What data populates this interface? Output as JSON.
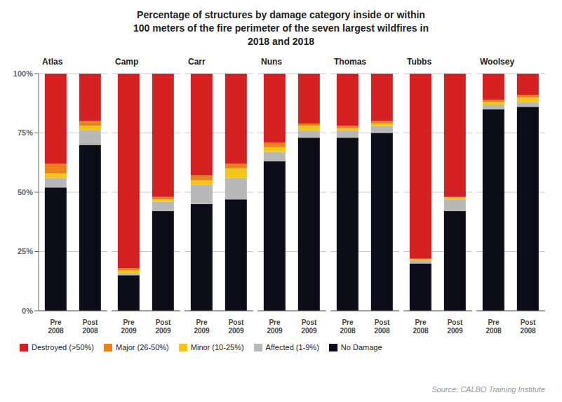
{
  "title": "Percentage of structures by damage category inside or within\n100 meters of the fire perimeter of the seven largest wildfires in\n2018 and 2018",
  "annotations": [
    "Source: CALBO Training Institute"
  ],
  "legend": "lower left",
  "chart_data": [
    {
      "type": "bar",
      "stacked": true,
      "title": "Atlas",
      "categories": [
        "Pre\n2008",
        "Post\n2008"
      ],
      "series": [
        {
          "name": "No Damage",
          "color": "#0d0d1a",
          "values": [
            52,
            70
          ]
        },
        {
          "name": "Affected (1-9%)",
          "color": "#b8b8b8",
          "values": [
            4,
            6
          ]
        },
        {
          "name": "Minor (10-25%)",
          "color": "#f5c518",
          "values": [
            2,
            2
          ]
        },
        {
          "name": "Major (26-50%)",
          "color": "#e8821a",
          "values": [
            4,
            2
          ]
        },
        {
          "name": "Destroyed (>50%)",
          "color": "#d42020",
          "values": [
            38,
            20
          ]
        }
      ],
      "ylim": [
        0,
        100
      ],
      "yticks": [
        {
          "value": 0,
          "label": "0%"
        },
        {
          "value": 25,
          "label": "25%"
        },
        {
          "value": 50,
          "label": "50%"
        },
        {
          "value": 75,
          "label": "75%"
        },
        {
          "value": 100,
          "label": "100%"
        }
      ],
      "grid": true
    },
    {
      "type": "bar",
      "stacked": true,
      "title": "Camp",
      "categories": [
        "Pre\n2009",
        "Post\n2009"
      ],
      "series": [
        {
          "name": "No Damage",
          "color": "#0d0d1a",
          "values": [
            15,
            42
          ]
        },
        {
          "name": "Affected (1-9%)",
          "color": "#b8b8b8",
          "values": [
            1,
            4
          ]
        },
        {
          "name": "Minor (10-25%)",
          "color": "#f5c518",
          "values": [
            1,
            1
          ]
        },
        {
          "name": "Major (26-50%)",
          "color": "#e8821a",
          "values": [
            1,
            1
          ]
        },
        {
          "name": "Destroyed (>50%)",
          "color": "#d42020",
          "values": [
            82,
            52
          ]
        }
      ],
      "ylim": [
        0,
        100
      ],
      "yticks": [
        0,
        25,
        50,
        75,
        100
      ],
      "tick_labels": "x",
      "grid": true
    },
    {
      "type": "bar",
      "stacked": true,
      "title": "Carr",
      "categories": [
        "Pre\n2009",
        "Post\n2009"
      ],
      "series": [
        {
          "name": "No Damage",
          "color": "#0d0d1a",
          "values": [
            45,
            47
          ]
        },
        {
          "name": "Affected (1-9%)",
          "color": "#b8b8b8",
          "values": [
            8,
            9
          ]
        },
        {
          "name": "Minor (10-25%)",
          "color": "#f5c518",
          "values": [
            2,
            4
          ]
        },
        {
          "name": "Major (26-50%)",
          "color": "#e8821a",
          "values": [
            2,
            2
          ]
        },
        {
          "name": "Destroyed (>50%)",
          "color": "#d42020",
          "values": [
            43,
            38
          ]
        }
      ],
      "ylim": [
        0,
        100
      ],
      "yticks": [
        0,
        25,
        50,
        75,
        100
      ],
      "tick_labels": "x",
      "grid": true
    },
    {
      "type": "bar",
      "stacked": true,
      "title": "Nuns",
      "categories": [
        "Pre\n2009",
        "Post\n2009"
      ],
      "series": [
        {
          "name": "No Damage",
          "color": "#0d0d1a",
          "values": [
            63,
            73
          ]
        },
        {
          "name": "Affected (1-9%)",
          "color": "#b8b8b8",
          "values": [
            4,
            3
          ]
        },
        {
          "name": "Minor (10-25%)",
          "color": "#f5c518",
          "values": [
            2,
            2
          ]
        },
        {
          "name": "Major (26-50%)",
          "color": "#e8821a",
          "values": [
            2,
            1
          ]
        },
        {
          "name": "Destroyed (>50%)",
          "color": "#d42020",
          "values": [
            29,
            21
          ]
        }
      ],
      "ylim": [
        0,
        100
      ],
      "yticks": [
        0,
        25,
        50,
        75,
        100
      ],
      "tick_labels": "x",
      "grid": true
    },
    {
      "type": "bar",
      "stacked": true,
      "title": "Thomas",
      "categories": [
        "Pre\n2008",
        "Post\n2008"
      ],
      "series": [
        {
          "name": "No Damage",
          "color": "#0d0d1a",
          "values": [
            73,
            75
          ]
        },
        {
          "name": "Affected (1-9%)",
          "color": "#b8b8b8",
          "values": [
            3,
            3
          ]
        },
        {
          "name": "Minor (10-25%)",
          "color": "#f5c518",
          "values": [
            1,
            1
          ]
        },
        {
          "name": "Major (26-50%)",
          "color": "#e8821a",
          "values": [
            1,
            1
          ]
        },
        {
          "name": "Destroyed (>50%)",
          "color": "#d42020",
          "values": [
            22,
            20
          ]
        }
      ],
      "ylim": [
        0,
        100
      ],
      "yticks": [
        0,
        25,
        50,
        75,
        100
      ],
      "tick_labels": "x",
      "grid": true
    },
    {
      "type": "bar",
      "stacked": true,
      "title": "Tubbs",
      "categories": [
        "Pre\n2008",
        "Post\n2009"
      ],
      "series": [
        {
          "name": "No Damage",
          "color": "#0d0d1a",
          "values": [
            20,
            42
          ]
        },
        {
          "name": "Affected (1-9%)",
          "color": "#b8b8b8",
          "values": [
            1,
            5
          ]
        },
        {
          "name": "Minor (10-25%)",
          "color": "#f5c518",
          "values": [
            1,
            1
          ]
        },
        {
          "name": "Major (26-50%)",
          "color": "#e8821a",
          "values": [
            0,
            0
          ]
        },
        {
          "name": "Destroyed (>50%)",
          "color": "#d42020",
          "values": [
            78,
            52
          ]
        }
      ],
      "ylim": [
        0,
        100
      ],
      "yticks": [
        0,
        25,
        50,
        75,
        100
      ],
      "tick_labels": "x",
      "grid": true
    },
    {
      "type": "bar",
      "stacked": true,
      "title": "Woolsey",
      "categories": [
        "Pre\n2008",
        "Post\n2008"
      ],
      "series": [
        {
          "name": "No Damage",
          "color": "#0d0d1a",
          "values": [
            85,
            86
          ]
        },
        {
          "name": "Affected (1-9%)",
          "color": "#b8b8b8",
          "values": [
            2,
            2
          ]
        },
        {
          "name": "Minor (10-25%)",
          "color": "#f5c518",
          "values": [
            1,
            2
          ]
        },
        {
          "name": "Major (26-50%)",
          "color": "#e8821a",
          "values": [
            1,
            1
          ]
        },
        {
          "name": "Destroyed (>50%)",
          "color": "#d42020",
          "values": [
            11,
            9
          ]
        }
      ],
      "ylim": [
        0,
        100
      ],
      "yticks": [
        0,
        25,
        50,
        75,
        100
      ],
      "tick_labels": "x",
      "grid": true
    }
  ]
}
